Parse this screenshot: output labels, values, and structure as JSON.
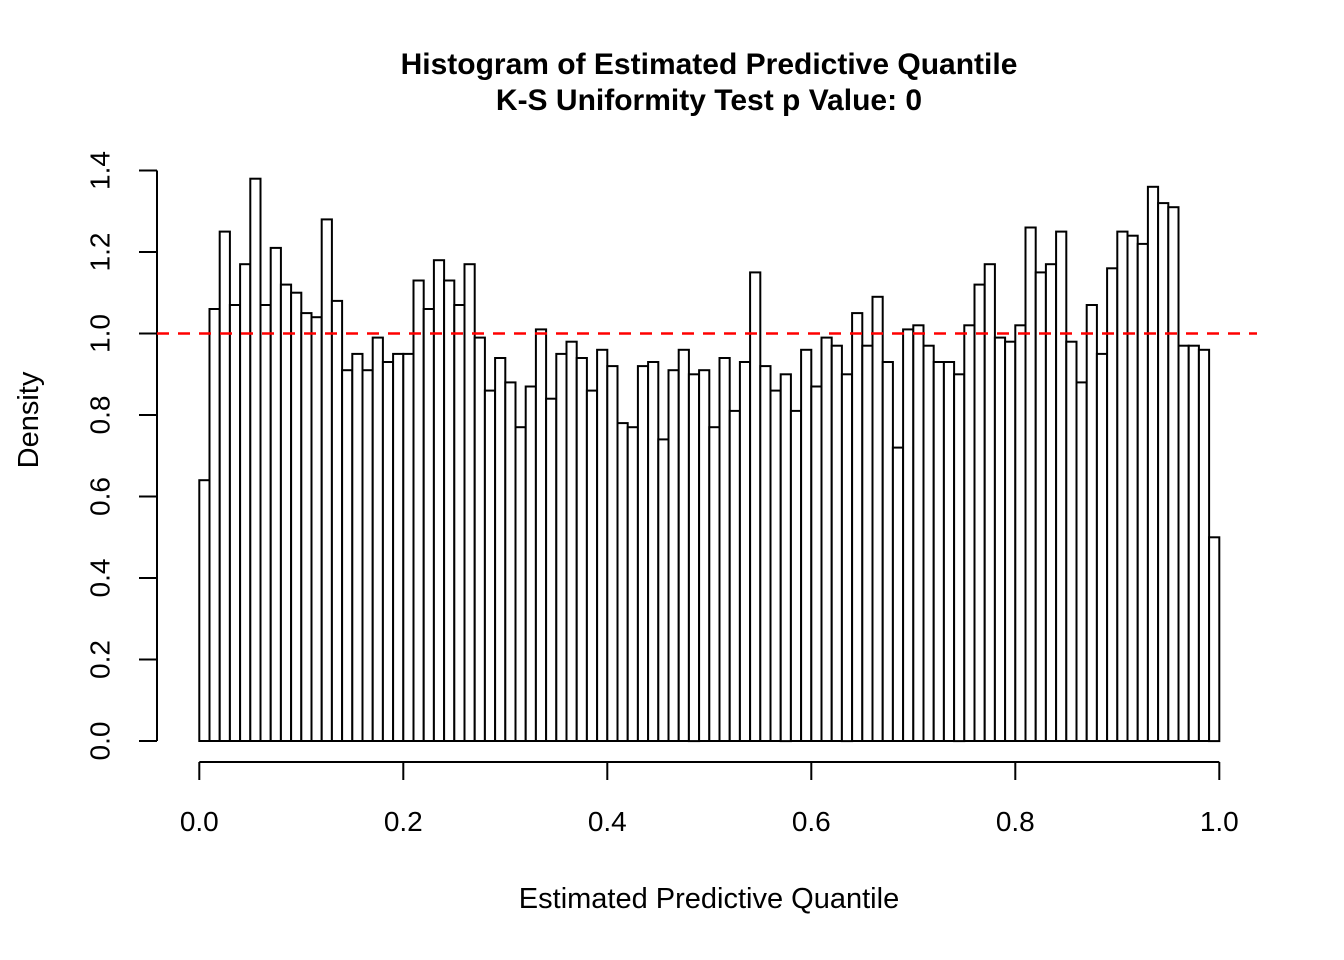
{
  "figure": {
    "background": "#ffffff",
    "text_color": "#000000"
  },
  "chart_data": {
    "type": "bar",
    "subtype": "histogram",
    "title": "Histogram of Estimated Predictive Quantile",
    "subtitle": "K-S Uniformity Test p Value: 0",
    "xlabel": "Estimated Predictive Quantile",
    "ylabel": "Density",
    "xlim": [
      0.0,
      1.0
    ],
    "ylim": [
      0.0,
      1.4
    ],
    "bin_start": 0.0,
    "bin_width": 0.01,
    "grid": false,
    "legend_position": "none",
    "bar_fill": "#FFFFFF",
    "bar_stroke": "#000000",
    "x_ticks": [
      "0.0",
      "0.2",
      "0.4",
      "0.6",
      "0.8",
      "1.0"
    ],
    "y_ticks": [
      "0.0",
      "0.2",
      "0.4",
      "0.6",
      "0.8",
      "1.0",
      "1.2",
      "1.4"
    ],
    "reference_line": {
      "y": 1.0,
      "style": "dashed",
      "color": "#FF0000"
    },
    "values": [
      0.64,
      1.06,
      1.25,
      1.07,
      1.17,
      1.38,
      1.07,
      1.21,
      1.12,
      1.1,
      1.05,
      1.04,
      1.28,
      1.08,
      0.91,
      0.95,
      0.91,
      0.99,
      0.93,
      0.95,
      0.95,
      1.13,
      1.06,
      1.18,
      1.13,
      1.07,
      1.17,
      0.99,
      0.86,
      0.94,
      0.88,
      0.77,
      0.87,
      1.01,
      0.84,
      0.95,
      0.98,
      0.94,
      0.86,
      0.96,
      0.92,
      0.78,
      0.77,
      0.92,
      0.93,
      0.74,
      0.91,
      0.96,
      0.9,
      0.91,
      0.77,
      0.94,
      0.81,
      0.93,
      1.15,
      0.92,
      0.86,
      0.9,
      0.81,
      0.96,
      0.87,
      0.99,
      0.97,
      0.9,
      1.05,
      0.97,
      1.09,
      0.93,
      0.72,
      1.01,
      1.02,
      0.97,
      0.93,
      0.93,
      0.9,
      1.02,
      1.12,
      1.17,
      0.99,
      0.98,
      1.02,
      1.26,
      1.15,
      1.17,
      1.25,
      0.98,
      0.88,
      1.07,
      0.95,
      1.16,
      1.25,
      1.24,
      1.22,
      1.36,
      1.32,
      1.31,
      0.97,
      0.97,
      0.96,
      0.5
    ]
  }
}
